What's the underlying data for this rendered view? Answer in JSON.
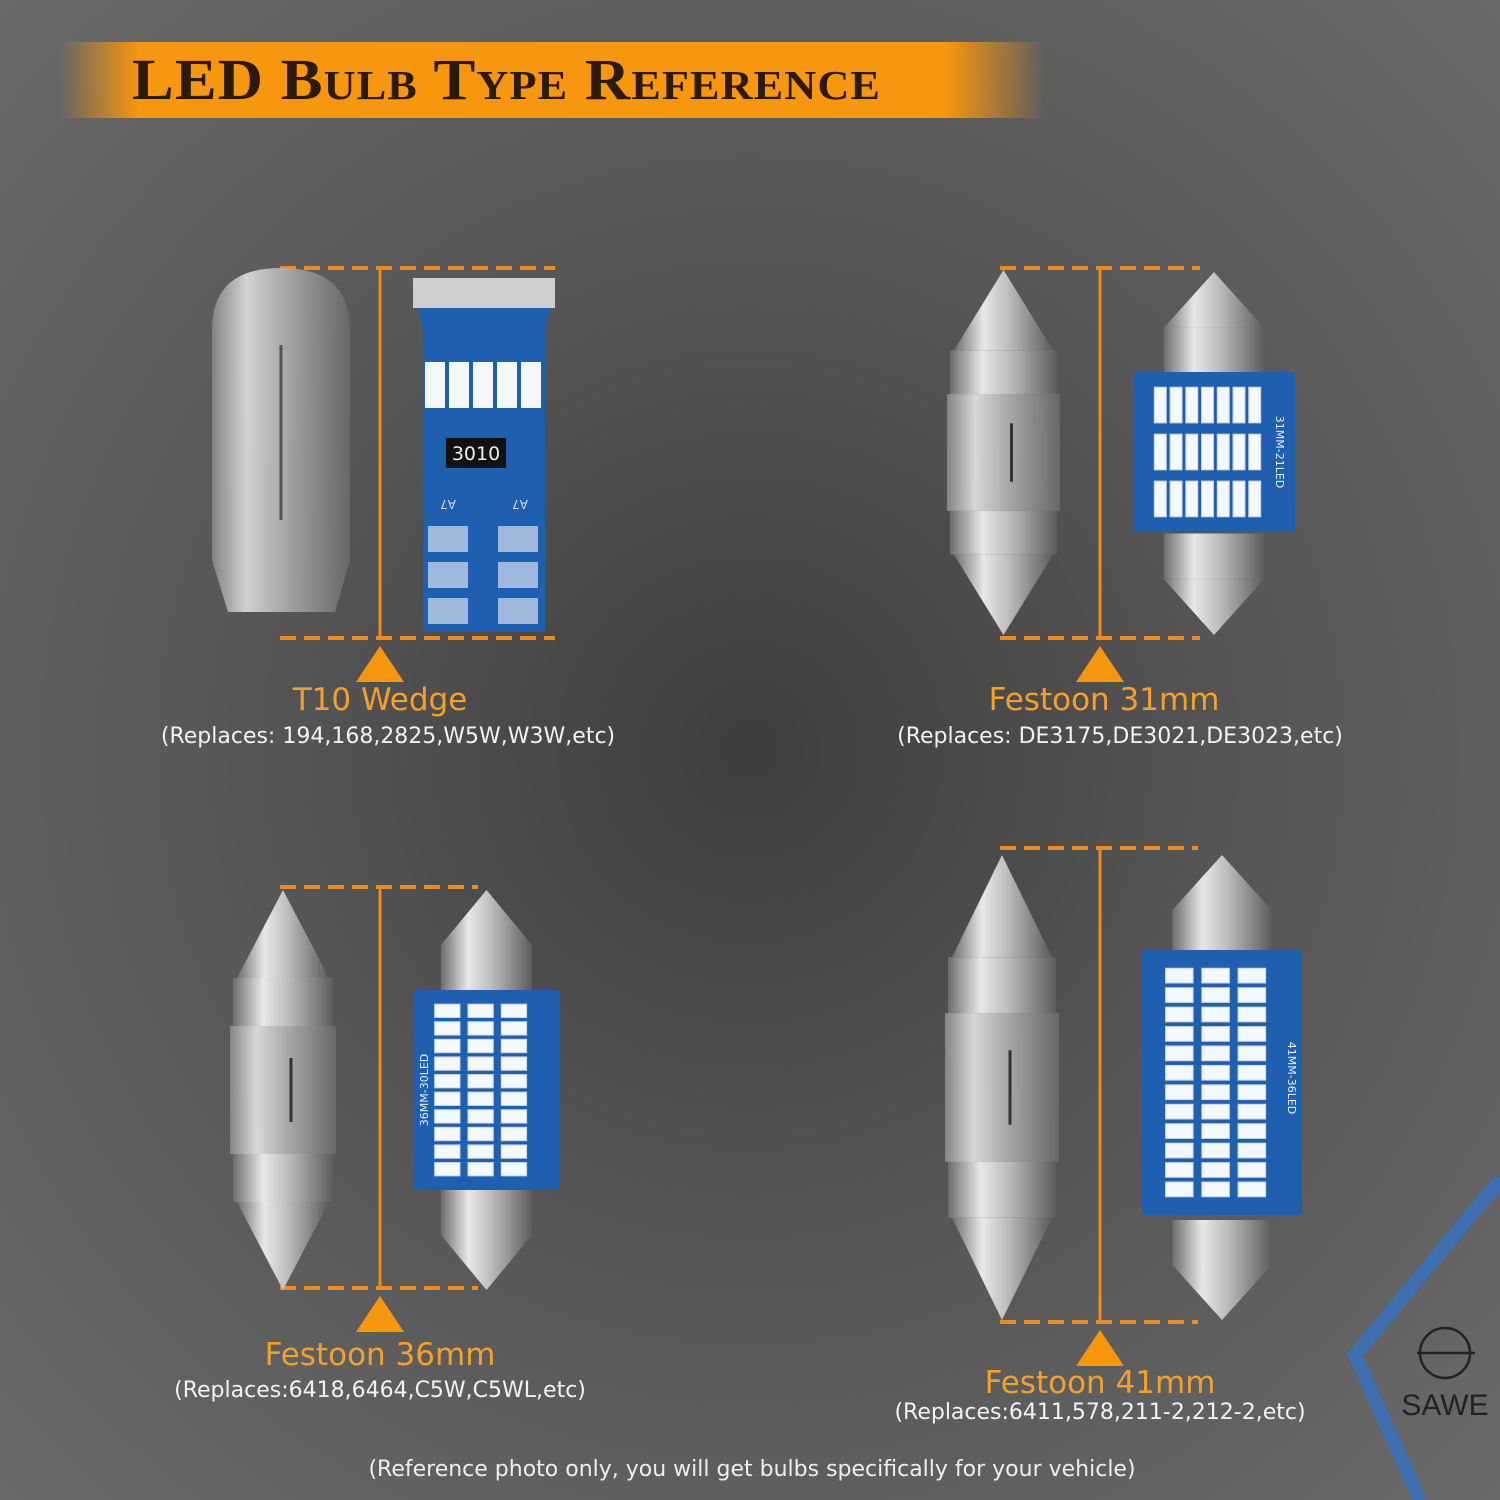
{
  "header": {
    "title": "LED Bulb Type Reference"
  },
  "bulbs": [
    {
      "name": "T10 Wedge",
      "replaces": "(Replaces: 194,168,2825,W5W,W3W,etc)",
      "chip_label": "3010",
      "diode_label": "A7"
    },
    {
      "name": "Festoon 31mm",
      "replaces": "(Replaces: DE3175,DE3021,DE3023,etc)",
      "board_label": "31MM-21LED"
    },
    {
      "name": "Festoon 36mm",
      "replaces": "(Replaces:6418,6464,C5W,C5WL,etc)",
      "board_label": "36MM-30LED"
    },
    {
      "name": "Festoon 41mm",
      "replaces": "(Replaces:6411,578,211-2,212-2,etc)",
      "board_label": "41MM-36LED"
    }
  ],
  "footer": {
    "note": "(Reference photo only, you will get bulbs specifically for your vehicle)"
  },
  "brand": {
    "logo_text": "SAWE"
  },
  "colors": {
    "accent": "#f7960f",
    "dimension_line": "#f08a1c",
    "board": "#1f5fb0",
    "background": "#555555"
  }
}
